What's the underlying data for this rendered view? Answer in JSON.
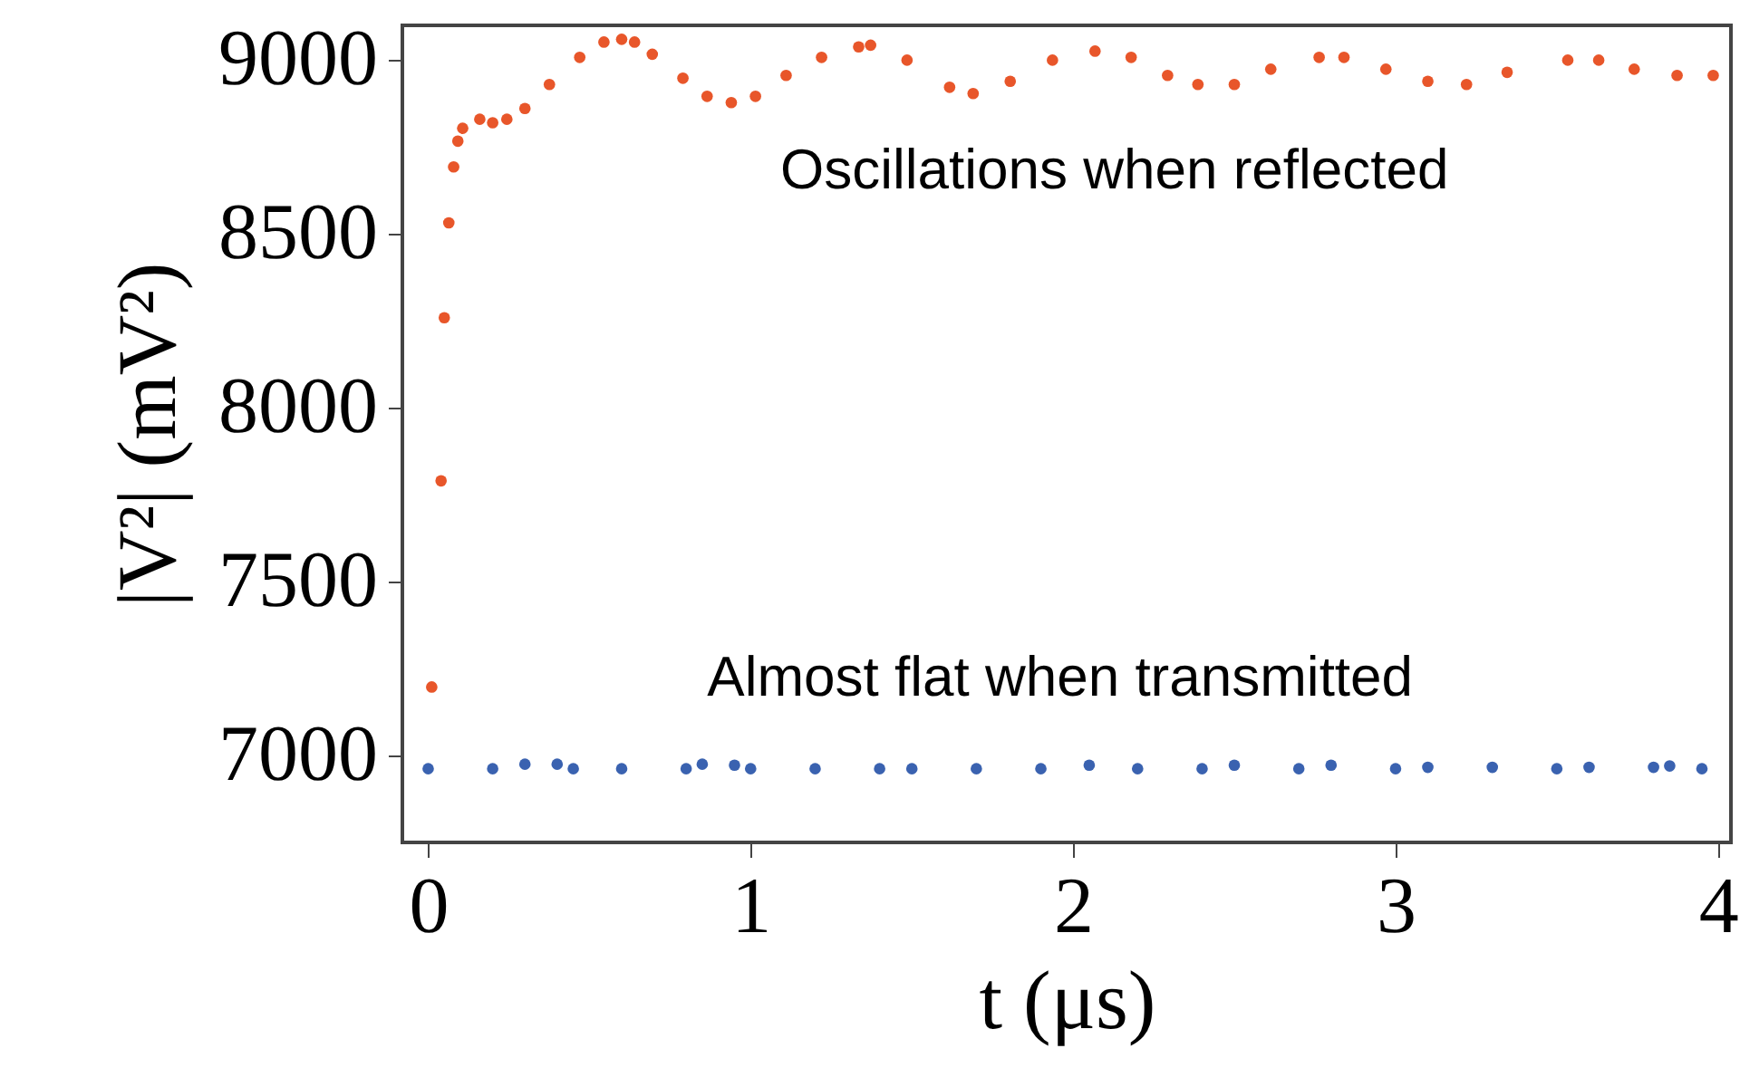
{
  "chart_data": {
    "type": "scatter",
    "xlabel": "t (μs)",
    "ylabel": "|V²| (mV²)",
    "xlim": [
      -0.08,
      4.04
    ],
    "ylim": [
      6750,
      9100
    ],
    "xticks": [
      0,
      1,
      2,
      3,
      4
    ],
    "yticks": [
      7000,
      7500,
      8000,
      8500,
      9000
    ],
    "grid": false,
    "marker": "circle",
    "annotations": [
      "Oscillations when reflected",
      "Almost flat when transmitted"
    ],
    "series": [
      {
        "color": "#e8562a",
        "x": [
          0.011,
          0.04,
          0.05,
          0.064,
          0.079,
          0.092,
          0.107,
          0.16,
          0.2,
          0.244,
          0.3,
          0.376,
          0.47,
          0.545,
          0.6,
          0.64,
          0.695,
          0.79,
          0.865,
          0.94,
          1.015,
          1.11,
          1.22,
          1.335,
          1.372,
          1.485,
          1.617,
          1.69,
          1.805,
          1.936,
          2.068,
          2.18,
          2.293,
          2.387,
          2.5,
          2.613,
          2.763,
          2.84,
          2.97,
          3.1,
          3.22,
          3.346,
          3.534,
          3.63,
          3.74,
          3.873,
          3.985
        ],
        "values": [
          7197,
          7790,
          8259,
          8532,
          8693,
          8767,
          8804,
          8830,
          8820,
          8830,
          8861,
          8930,
          9008,
          9052,
          9060,
          9052,
          9017,
          8948,
          8896,
          8878,
          8896,
          8956,
          9008,
          9038,
          9043,
          9000,
          8922,
          8904,
          8939,
          9000,
          9026,
          9008,
          8956,
          8930,
          8930,
          8974,
          9008,
          9008,
          8974,
          8939,
          8930,
          8965,
          9000,
          9000,
          8974,
          8956,
          8956
        ]
      },
      {
        "color": "#3a62b0",
        "x": [
          0.0,
          0.2,
          0.3,
          0.4,
          0.45,
          0.6,
          0.8,
          0.85,
          0.95,
          1.0,
          1.2,
          1.4,
          1.5,
          1.7,
          1.9,
          2.05,
          2.2,
          2.4,
          2.5,
          2.7,
          2.8,
          3.0,
          3.1,
          3.3,
          3.5,
          3.6,
          3.8,
          3.85,
          3.95
        ],
        "values": [
          6962,
          6962,
          6975,
          6975,
          6962,
          6962,
          6962,
          6975,
          6972,
          6962,
          6962,
          6962,
          6962,
          6962,
          6962,
          6972,
          6962,
          6962,
          6972,
          6962,
          6972,
          6962,
          6966,
          6966,
          6962,
          6966,
          6966,
          6970,
          6962
        ]
      }
    ]
  }
}
